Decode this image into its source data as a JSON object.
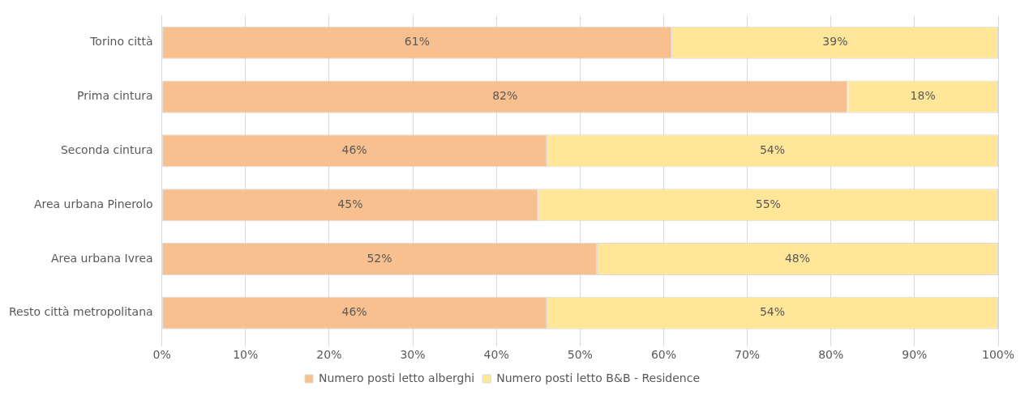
{
  "chart_data": {
    "type": "bar",
    "orientation": "horizontal",
    "stacked": true,
    "categories": [
      "Torino città",
      "Prima cintura",
      "Seconda cintura",
      "Area urbana Pinerolo",
      "Area urbana Ivrea",
      "Resto città metropolitana"
    ],
    "series": [
      {
        "name": "Numero posti letto alberghi",
        "color": "#f8bf8f",
        "values": [
          61,
          82,
          46,
          45,
          52,
          46
        ],
        "value_labels": [
          "61%",
          "82%",
          "46%",
          "45%",
          "52%",
          "46%"
        ]
      },
      {
        "name": "Numero posti letto B&B - Residence",
        "color": "#ffe699",
        "values": [
          39,
          18,
          54,
          55,
          48,
          54
        ],
        "value_labels": [
          "39%",
          "18%",
          "54%",
          "55%",
          "48%",
          "54%"
        ]
      }
    ],
    "xlim": [
      0,
      100
    ],
    "xticks": [
      {
        "value": 0,
        "label": "0%"
      },
      {
        "value": 10,
        "label": "10%"
      },
      {
        "value": 20,
        "label": "20%"
      },
      {
        "value": 30,
        "label": "30%"
      },
      {
        "value": 40,
        "label": "40%"
      },
      {
        "value": 50,
        "label": "50%"
      },
      {
        "value": 60,
        "label": "60%"
      },
      {
        "value": 70,
        "label": "70%"
      },
      {
        "value": 80,
        "label": "80%"
      },
      {
        "value": 90,
        "label": "90%"
      },
      {
        "value": 100,
        "label": "100%"
      }
    ],
    "grid": "x",
    "legend": "bottom"
  }
}
